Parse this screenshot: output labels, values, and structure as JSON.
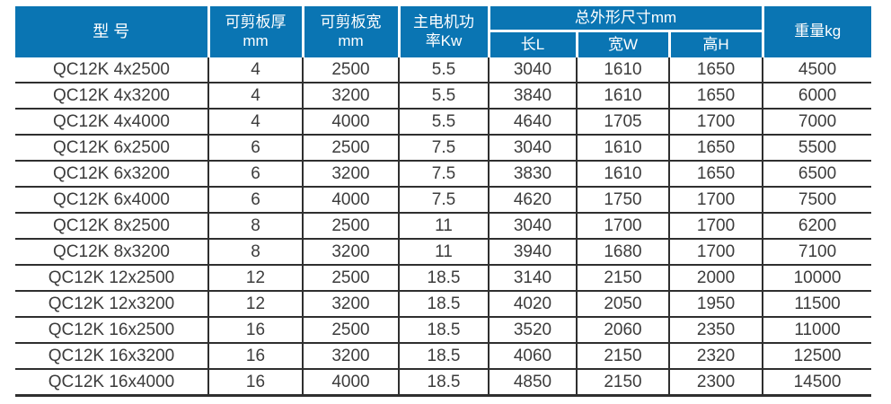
{
  "table": {
    "title": "QC12K shearing machine specification table",
    "colors": {
      "header_bg": "#0a75b3",
      "header_text": "#ffffff",
      "body_text": "#3c3c3c",
      "grid_line": "#2f2f2f"
    },
    "header": {
      "model": "型 号",
      "thickness_line1": "可剪板厚",
      "thickness_line2": "mm",
      "width_line1": "可剪板宽",
      "width_line2": "mm",
      "power_line1": "主电机功",
      "power_line2": "率Kw",
      "dims_group": "总外形尺寸mm",
      "dim_length": "长L",
      "dim_width": "宽W",
      "dim_height": "高H",
      "weight": "重量kg"
    },
    "column_keys": [
      "model",
      "thickness-mm",
      "width-mm",
      "power-kw",
      "length-l",
      "width-w",
      "height-h",
      "weight-kg"
    ],
    "rows": [
      [
        "QC12K 4x2500",
        "4",
        "2500",
        "5.5",
        "3040",
        "1610",
        "1650",
        "4500"
      ],
      [
        "QC12K 4x3200",
        "4",
        "3200",
        "5.5",
        "3840",
        "1610",
        "1650",
        "6000"
      ],
      [
        "QC12K 4x4000",
        "4",
        "4000",
        "5.5",
        "4640",
        "1705",
        "1700",
        "7000"
      ],
      [
        "QC12K 6x2500",
        "6",
        "2500",
        "7.5",
        "3040",
        "1610",
        "1650",
        "5500"
      ],
      [
        "QC12K 6x3200",
        "6",
        "3200",
        "7.5",
        "3830",
        "1610",
        "1650",
        "6500"
      ],
      [
        "QC12K 6x4000",
        "6",
        "4000",
        "7.5",
        "4620",
        "1750",
        "1700",
        "7500"
      ],
      [
        "QC12K 8x2500",
        "8",
        "2500",
        "11",
        "3040",
        "1700",
        "1700",
        "6200"
      ],
      [
        "QC12K 8x3200",
        "8",
        "3200",
        "11",
        "3940",
        "1680",
        "1700",
        "7100"
      ],
      [
        "QC12K 12x2500",
        "12",
        "2500",
        "18.5",
        "3140",
        "2150",
        "2000",
        "10000"
      ],
      [
        "QC12K 12x3200",
        "12",
        "3200",
        "18.5",
        "4020",
        "2050",
        "1950",
        "11500"
      ],
      [
        "QC12K 16x2500",
        "16",
        "2500",
        "18.5",
        "3520",
        "2060",
        "2350",
        "11000"
      ],
      [
        "QC12K 16x3200",
        "16",
        "3200",
        "18.5",
        "4060",
        "2150",
        "2320",
        "12500"
      ],
      [
        "QC12K 16x4000",
        "16",
        "4000",
        "18.5",
        "4850",
        "2150",
        "2300",
        "14500"
      ]
    ]
  }
}
